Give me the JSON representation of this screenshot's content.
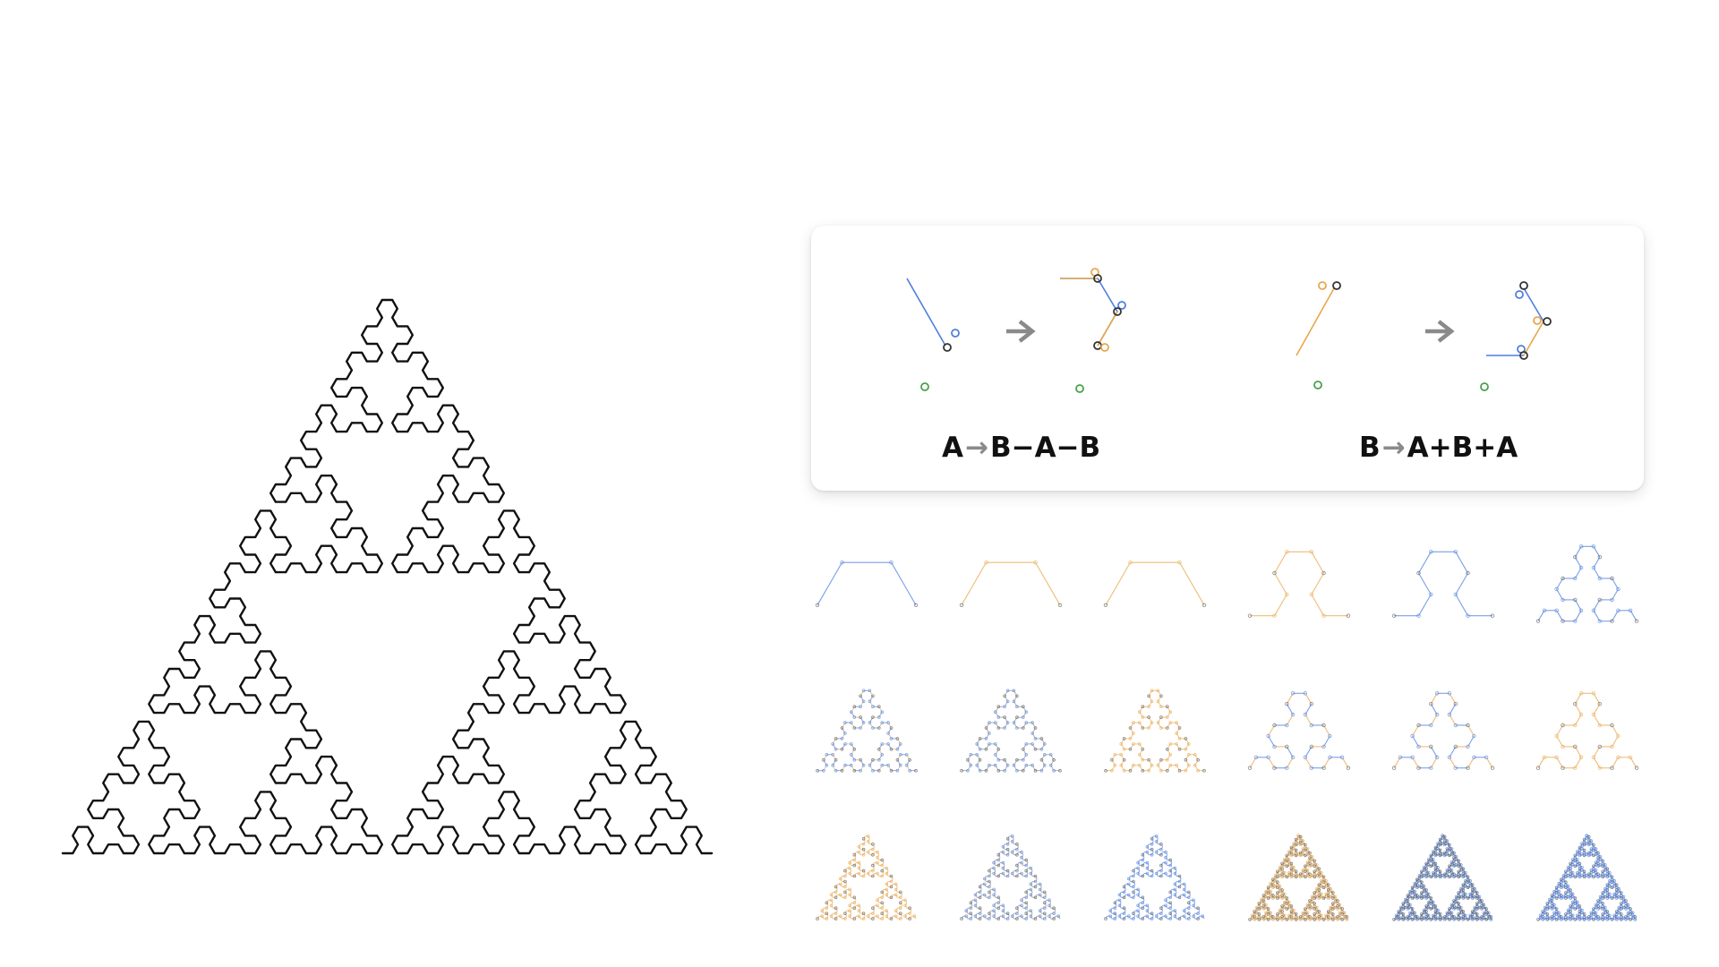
{
  "colors": {
    "blue": "#4f7fdc",
    "orange": "#e8a74d",
    "dark": "#333333",
    "green": "#49a14a",
    "arrow": "#8a8a8a",
    "curve": "#111111"
  },
  "rules": [
    {
      "lhs": "A",
      "arrow": "→",
      "rhs": "B−A−B"
    },
    {
      "lhs": "B",
      "arrow": "→",
      "rhs": "A+B+A"
    }
  ],
  "icons": {
    "main": "sierpinski-arrowhead-curve",
    "rule_arrow": "right-arrow-icon"
  },
  "thumbnail_grid": {
    "rows": 3,
    "cols": 6,
    "levels": [
      [
        1,
        1,
        1,
        2,
        2,
        3
      ],
      [
        4,
        4,
        4,
        3,
        3,
        3
      ],
      [
        5,
        5,
        5,
        6,
        6,
        6
      ]
    ],
    "styles": [
      [
        "blue",
        "orange",
        "orange",
        "orange",
        "blue",
        "blue"
      ],
      [
        "mixed",
        "gray",
        "orange",
        "mixed",
        "mixed",
        "orange"
      ],
      [
        "orange",
        "gray",
        "blue",
        "tan",
        "dark",
        "blue"
      ]
    ]
  }
}
